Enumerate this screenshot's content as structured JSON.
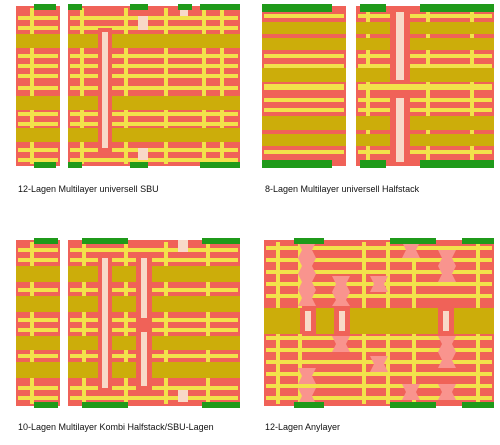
{
  "colors": {
    "core": "#ccad0a",
    "prepreg": "#f2e24b",
    "resin": "#f06258",
    "via_fill": "#f8d9c8",
    "copper_top": "#1f9a1a",
    "microvia": "#f9948e"
  },
  "captions": {
    "panel_1": "12-Lagen Multilayer universell SBU",
    "panel_2": "8-Lagen Multilayer universell Halfstack",
    "panel_3": "10-Lagen Multilayer Kombi Halfstack/SBU-Lagen",
    "panel_4": "12-Lagen Anylayer"
  }
}
